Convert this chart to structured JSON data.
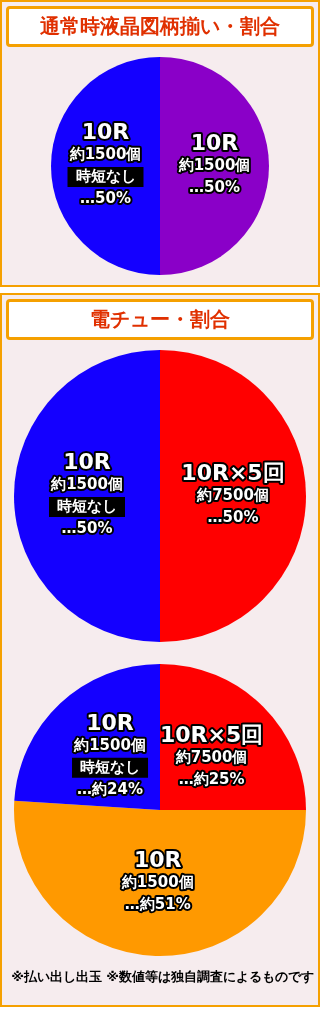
{
  "chart_data": [
    {
      "type": "pie",
      "title": "通常時液晶図柄揃い・割合",
      "categories": [
        "10R約1500個",
        "10R約1500個時短なし"
      ],
      "values": [
        50,
        50
      ],
      "colors": [
        "#8a00c8",
        "#1400ff"
      ],
      "value_labels": [
        "…50%",
        "…50%"
      ]
    },
    {
      "type": "pie",
      "title": "電チュー・割合",
      "categories": [
        "10R×5回約7500個",
        "10R約1500個時短なし"
      ],
      "values": [
        50,
        50
      ],
      "colors": [
        "#ff0000",
        "#1400ff"
      ],
      "value_labels": [
        "…50%",
        "…50%"
      ]
    },
    {
      "type": "pie",
      "categories": [
        "10R×5回約7500個",
        "10R約1500個",
        "10R約1500個時短なし"
      ],
      "values": [
        25,
        51,
        24
      ],
      "colors": [
        "#ff0000",
        "#ff9900",
        "#1400ff"
      ],
      "value_labels": [
        "…約25%",
        "…約51%",
        "…約24%"
      ],
      "annotations": [
        "※払い出し出玉 ※数値等は独自調査によるものです"
      ]
    }
  ]
}
